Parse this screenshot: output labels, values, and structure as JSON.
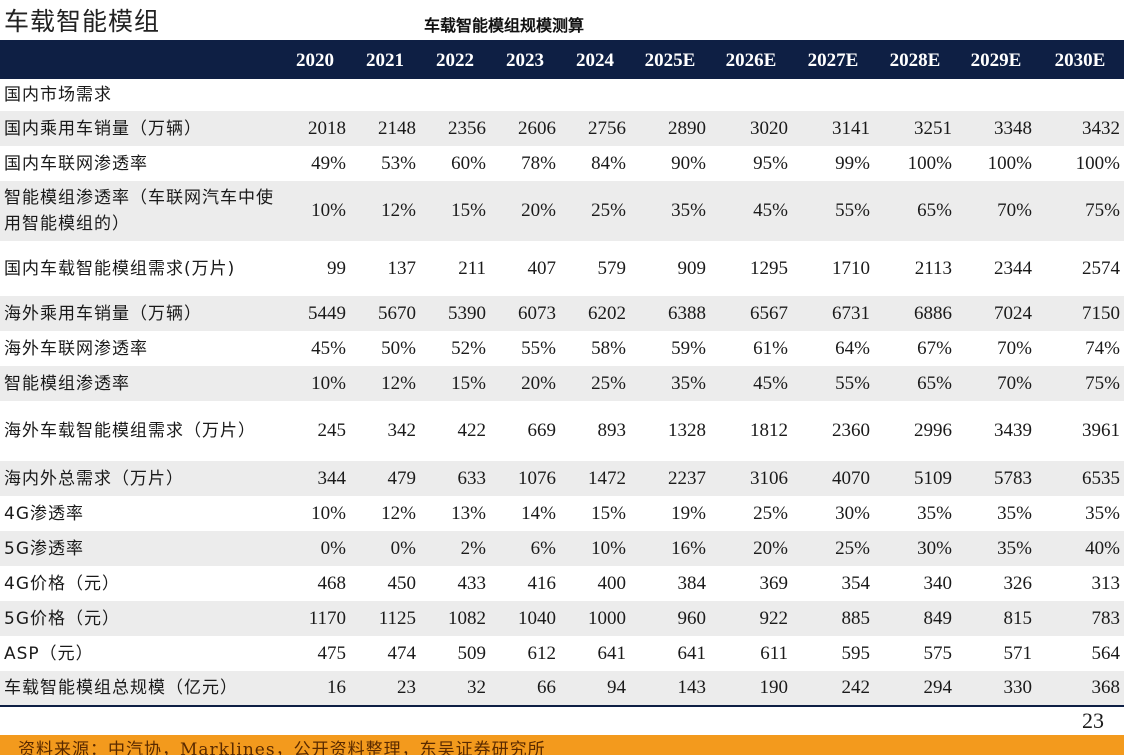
{
  "page_title": "车载智能模组",
  "table_title": "车载智能模组规模测算",
  "headers": [
    "",
    "2020",
    "2021",
    "2022",
    "2023",
    "2024",
    "2025E",
    "2026E",
    "2027E",
    "2028E",
    "2029E",
    "2030E"
  ],
  "rows": [
    {
      "label": "国内市场需求",
      "values": [
        "",
        "",
        "",
        "",
        "",
        "",
        "",
        "",
        "",
        "",
        ""
      ]
    },
    {
      "label": "国内乘用车销量（万辆）",
      "values": [
        "2018",
        "2148",
        "2356",
        "2606",
        "2756",
        "2890",
        "3020",
        "3141",
        "3251",
        "3348",
        "3432"
      ]
    },
    {
      "label": "国内车联网渗透率",
      "values": [
        "49%",
        "53%",
        "60%",
        "78%",
        "84%",
        "90%",
        "95%",
        "99%",
        "100%",
        "100%",
        "100%"
      ]
    },
    {
      "label": "智能模组渗透率（车联网汽车中使用智能模组的）",
      "values": [
        "10%",
        "12%",
        "15%",
        "20%",
        "25%",
        "35%",
        "45%",
        "55%",
        "65%",
        "70%",
        "75%"
      ]
    },
    {
      "label": "国内车载智能模组需求(万片)",
      "values": [
        "99",
        "137",
        "211",
        "407",
        "579",
        "909",
        "1295",
        "1710",
        "2113",
        "2344",
        "2574"
      ]
    },
    {
      "label": "海外乘用车销量（万辆）",
      "values": [
        "5449",
        "5670",
        "5390",
        "6073",
        "6202",
        "6388",
        "6567",
        "6731",
        "6886",
        "7024",
        "7150"
      ]
    },
    {
      "label": "海外车联网渗透率",
      "values": [
        "45%",
        "50%",
        "52%",
        "55%",
        "58%",
        "59%",
        "61%",
        "64%",
        "67%",
        "70%",
        "74%"
      ]
    },
    {
      "label": "智能模组渗透率",
      "values": [
        "10%",
        "12%",
        "15%",
        "20%",
        "25%",
        "35%",
        "45%",
        "55%",
        "65%",
        "70%",
        "75%"
      ]
    },
    {
      "label": "海外车载智能模组需求（万片）",
      "values": [
        "245",
        "342",
        "422",
        "669",
        "893",
        "1328",
        "1812",
        "2360",
        "2996",
        "3439",
        "3961"
      ]
    },
    {
      "label": "海内外总需求（万片）",
      "values": [
        "344",
        "479",
        "633",
        "1076",
        "1472",
        "2237",
        "3106",
        "4070",
        "5109",
        "5783",
        "6535"
      ]
    },
    {
      "label": "4G渗透率",
      "values": [
        "10%",
        "12%",
        "13%",
        "14%",
        "15%",
        "19%",
        "25%",
        "30%",
        "35%",
        "35%",
        "35%"
      ]
    },
    {
      "label": "5G渗透率",
      "values": [
        "0%",
        "0%",
        "2%",
        "6%",
        "10%",
        "16%",
        "20%",
        "25%",
        "30%",
        "35%",
        "40%"
      ]
    },
    {
      "label": "4G价格（元）",
      "values": [
        "468",
        "450",
        "433",
        "416",
        "400",
        "384",
        "369",
        "354",
        "340",
        "326",
        "313"
      ]
    },
    {
      "label": "5G价格（元）",
      "values": [
        "1170",
        "1125",
        "1082",
        "1040",
        "1000",
        "960",
        "922",
        "885",
        "849",
        "815",
        "783"
      ]
    },
    {
      "label": "ASP（元）",
      "values": [
        "475",
        "474",
        "509",
        "612",
        "641",
        "641",
        "611",
        "595",
        "575",
        "571",
        "564"
      ]
    },
    {
      "label": "车载智能模组总规模（亿元）",
      "values": [
        "16",
        "23",
        "32",
        "66",
        "94",
        "143",
        "190",
        "242",
        "294",
        "330",
        "368"
      ]
    }
  ],
  "page_number": "23",
  "footer_source": "资料来源：中汽协，Marklines，公开资料整理，东吴证券研究所"
}
